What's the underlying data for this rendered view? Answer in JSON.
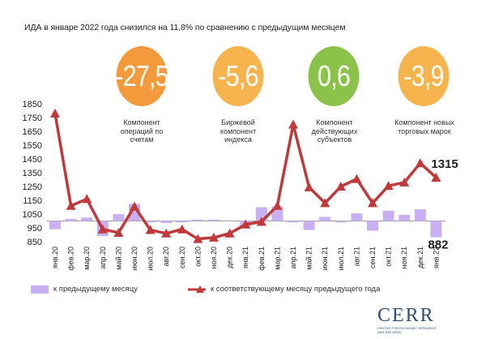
{
  "title": "ИДА в январе 2022 года снизился на 11,8% по сравнению с предыдущим месяцем",
  "components": [
    {
      "value": "-27,5",
      "label": "Компонент операций по счетам",
      "color": "#f39a3c"
    },
    {
      "value": "-5,6",
      "label": "Биржевой компонент индекса",
      "color": "#f7b44e"
    },
    {
      "value": "0,6",
      "label": "Компонент действующих субъектов",
      "color": "#8bc34a"
    },
    {
      "value": "-3,9",
      "label": "Компонент новых торговых марок",
      "color": "#f7b44e"
    }
  ],
  "colors": {
    "line": "#c0393b",
    "bar": "#c9b0f2"
  },
  "legend": {
    "bars": "к предыдущему месяцу",
    "line": "к соответствующему месяцу предыдущего года"
  },
  "logo": {
    "name": "CERR",
    "sub": "CENTER FOR ECONOMIC RESEARCH AND REFORMS"
  },
  "chart_data": {
    "type": "bar+line",
    "categories": [
      "янв.20",
      "фев.20",
      "мар.20",
      "апр.20",
      "май.20",
      "июн.20",
      "июл.20",
      "авг.20",
      "сен.20",
      "окт.20",
      "ноя.20",
      "дек.20",
      "янв.21",
      "фев.21",
      "мар.21",
      "апр.21",
      "май.21",
      "июн.21",
      "июл.21",
      "авг.21",
      "сен.21",
      "окт.21",
      "ноя.21",
      "дек.21",
      "янв.22"
    ],
    "ylim": [
      850,
      1850
    ],
    "yticks": [
      850,
      950,
      1050,
      1150,
      1250,
      1350,
      1450,
      1550,
      1650,
      1750,
      1850
    ],
    "baseline": 1000,
    "series": [
      {
        "name": "к соответствующему месяцу предыдущего года",
        "type": "line",
        "values": [
          1780,
          1110,
          1160,
          940,
          915,
          1105,
          935,
          910,
          940,
          870,
          880,
          910,
          975,
          995,
          1110,
          1700,
          1245,
          1130,
          1250,
          1305,
          1130,
          1255,
          1280,
          1420,
          1315
        ]
      },
      {
        "name": "к предыдущему месяцу",
        "type": "bar",
        "values": [
          940,
          1015,
          1025,
          890,
          1050,
          1125,
          990,
          985,
          990,
          1010,
          1010,
          1005,
          965,
          1100,
          1105,
          990,
          935,
          1030,
          990,
          1055,
          930,
          1075,
          1045,
          1085,
          882
        ]
      }
    ],
    "annotations": [
      "1315",
      "882"
    ]
  }
}
